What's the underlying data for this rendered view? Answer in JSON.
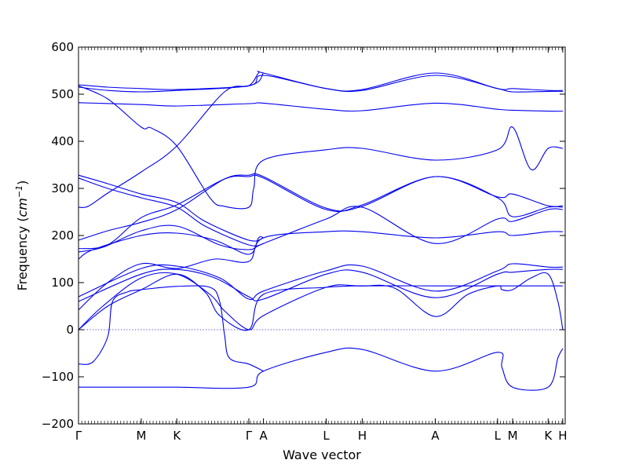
{
  "chart_data": {
    "type": "line",
    "title": "",
    "xlabel": "Wave vector",
    "ylabel": "Frequency (cm⁻¹)",
    "ylabel_base": "Frequency (",
    "ylabel_unit": "cm",
    "ylabel_exp": "−1",
    "ylabel_close": ")",
    "ylim": [
      -200,
      600
    ],
    "yticks": [
      -200,
      -100,
      0,
      100,
      200,
      300,
      400,
      500,
      600
    ],
    "ytick_labels": [
      "−200",
      "−100",
      "0",
      "100",
      "200",
      "300",
      "400",
      "500",
      "600"
    ],
    "xlim": [
      0,
      1
    ],
    "xticks": [
      {
        "label": "Γ",
        "x": 0.0
      },
      {
        "label": "M",
        "x": 0.129
      },
      {
        "label": "K",
        "x": 0.202
      },
      {
        "label": "Γ",
        "x": 0.35
      },
      {
        "label": "A",
        "x": 0.38
      },
      {
        "label": "L",
        "x": 0.509
      },
      {
        "label": "H",
        "x": 0.583
      },
      {
        "label": "A",
        "x": 0.733
      },
      {
        "label": "L",
        "x": 0.861
      },
      {
        "label": "M",
        "x": 0.892
      },
      {
        "label": "K",
        "x": 0.965
      },
      {
        "label": "H",
        "x": 0.995
      }
    ],
    "grid": false,
    "zero_line": "dotted",
    "line_color": "#0000ee",
    "series": [
      {
        "points": [
          [
            0,
            -122
          ],
          [
            0.129,
            -122
          ],
          [
            0.202,
            -122
          ],
          [
            0.35,
            -122
          ],
          [
            0.38,
            -88
          ],
          [
            0.509,
            -48
          ],
          [
            0.583,
            -42
          ],
          [
            0.733,
            -88
          ],
          [
            0.861,
            -48
          ],
          [
            0.87,
            -80
          ],
          [
            0.892,
            -122
          ],
          [
            0.965,
            -122
          ],
          [
            0.985,
            -60
          ],
          [
            0.995,
            -40
          ]
        ]
      },
      {
        "points": [
          [
            0,
            -73
          ],
          [
            0.03,
            -68
          ],
          [
            0.06,
            -15
          ],
          [
            0.07,
            60
          ],
          [
            0.1,
            80
          ],
          [
            0.129,
            85
          ],
          [
            0.202,
            92
          ],
          [
            0.27,
            90
          ],
          [
            0.29,
            60
          ],
          [
            0.3,
            -10
          ],
          [
            0.31,
            -60
          ],
          [
            0.35,
            -73
          ],
          [
            0.38,
            -88
          ]
        ]
      },
      {
        "points": [
          [
            0,
            0
          ],
          [
            0.05,
            50
          ],
          [
            0.129,
            110
          ],
          [
            0.202,
            118
          ],
          [
            0.27,
            75
          ],
          [
            0.3,
            40
          ],
          [
            0.35,
            0
          ],
          [
            0.38,
            30
          ],
          [
            0.509,
            90
          ],
          [
            0.583,
            93
          ],
          [
            0.733,
            93
          ],
          [
            0.861,
            93
          ],
          [
            0.965,
            93
          ],
          [
            0.995,
            93
          ]
        ]
      },
      {
        "points": [
          [
            0,
            0
          ],
          [
            0.06,
            50
          ],
          [
            0.129,
            85
          ],
          [
            0.202,
            118
          ],
          [
            0.26,
            80
          ],
          [
            0.29,
            30
          ],
          [
            0.35,
            0
          ],
          [
            0.38,
            75
          ],
          [
            0.509,
            90
          ],
          [
            0.583,
            93
          ],
          [
            0.65,
            88
          ],
          [
            0.733,
            28
          ],
          [
            0.8,
            75
          ],
          [
            0.861,
            93
          ],
          [
            0.87,
            85
          ],
          [
            0.892,
            85
          ],
          [
            0.93,
            110
          ],
          [
            0.965,
            118
          ],
          [
            0.985,
            60
          ],
          [
            0.995,
            0
          ]
        ]
      },
      {
        "points": [
          [
            0,
            60
          ],
          [
            0.129,
            118
          ],
          [
            0.202,
            128
          ],
          [
            0.28,
            110
          ],
          [
            0.35,
            70
          ],
          [
            0.38,
            65
          ],
          [
            0.509,
            118
          ],
          [
            0.583,
            122
          ],
          [
            0.733,
            68
          ],
          [
            0.861,
            118
          ],
          [
            0.892,
            122
          ],
          [
            0.965,
            128
          ],
          [
            0.995,
            128
          ]
        ]
      },
      {
        "points": [
          [
            0,
            70
          ],
          [
            0.129,
            130
          ],
          [
            0.202,
            135
          ],
          [
            0.29,
            110
          ],
          [
            0.35,
            65
          ],
          [
            0.38,
            82
          ],
          [
            0.509,
            125
          ],
          [
            0.583,
            135
          ],
          [
            0.733,
            82
          ],
          [
            0.861,
            125
          ],
          [
            0.892,
            140
          ],
          [
            0.965,
            133
          ],
          [
            0.995,
            133
          ]
        ]
      },
      {
        "points": [
          [
            0,
            42
          ],
          [
            0.06,
            100
          ],
          [
            0.129,
            140
          ],
          [
            0.202,
            130
          ],
          [
            0.28,
            150
          ],
          [
            0.35,
            145
          ],
          [
            0.38,
            195
          ],
          [
            0.509,
            208
          ],
          [
            0.583,
            208
          ],
          [
            0.733,
            195
          ],
          [
            0.861,
            208
          ],
          [
            0.892,
            200
          ],
          [
            0.965,
            208
          ],
          [
            0.995,
            208
          ]
        ]
      },
      {
        "points": [
          [
            0,
            150
          ],
          [
            0.03,
            170
          ],
          [
            0.129,
            200
          ],
          [
            0.202,
            205
          ],
          [
            0.28,
            190
          ],
          [
            0.35,
            160
          ],
          [
            0.37,
            195
          ],
          [
            0.38,
            195
          ]
        ]
      },
      {
        "points": [
          [
            0,
            165
          ],
          [
            0.05,
            175
          ],
          [
            0.129,
            210
          ],
          [
            0.202,
            220
          ],
          [
            0.29,
            180
          ],
          [
            0.35,
            170
          ],
          [
            0.38,
            183
          ],
          [
            0.509,
            235
          ],
          [
            0.583,
            260
          ],
          [
            0.733,
            183
          ],
          [
            0.861,
            235
          ],
          [
            0.892,
            230
          ],
          [
            0.965,
            255
          ],
          [
            0.995,
            255
          ]
        ]
      },
      {
        "points": [
          [
            0,
            172
          ],
          [
            0.06,
            180
          ],
          [
            0.129,
            238
          ],
          [
            0.202,
            265
          ],
          [
            0.3,
            320
          ],
          [
            0.35,
            325
          ],
          [
            0.38,
            322
          ],
          [
            0.509,
            255
          ],
          [
            0.583,
            265
          ],
          [
            0.733,
            325
          ],
          [
            0.861,
            280
          ],
          [
            0.892,
            240
          ],
          [
            0.965,
            260
          ],
          [
            0.995,
            260
          ]
        ]
      },
      {
        "points": [
          [
            0,
            190
          ],
          [
            0.06,
            210
          ],
          [
            0.129,
            228
          ],
          [
            0.202,
            255
          ],
          [
            0.3,
            320
          ],
          [
            0.35,
            328
          ],
          [
            0.38,
            325
          ],
          [
            0.509,
            258
          ],
          [
            0.583,
            262
          ],
          [
            0.733,
            325
          ],
          [
            0.861,
            282
          ],
          [
            0.892,
            288
          ],
          [
            0.965,
            263
          ],
          [
            0.995,
            263
          ]
        ]
      },
      {
        "points": [
          [
            0,
            322
          ],
          [
            0.06,
            300
          ],
          [
            0.129,
            280
          ],
          [
            0.202,
            260
          ],
          [
            0.26,
            220
          ],
          [
            0.35,
            180
          ],
          [
            0.38,
            183
          ]
        ]
      },
      {
        "points": [
          [
            0,
            328
          ],
          [
            0.06,
            310
          ],
          [
            0.129,
            288
          ],
          [
            0.202,
            270
          ],
          [
            0.26,
            230
          ],
          [
            0.35,
            190
          ],
          [
            0.38,
            195
          ]
        ]
      },
      {
        "points": [
          [
            0,
            260
          ],
          [
            0.02,
            262
          ],
          [
            0.06,
            290
          ],
          [
            0.129,
            335
          ],
          [
            0.202,
            390
          ],
          [
            0.3,
            505
          ],
          [
            0.35,
            518
          ],
          [
            0.37,
            545
          ],
          [
            0.38,
            545
          ],
          [
            0.509,
            512
          ],
          [
            0.583,
            510
          ],
          [
            0.733,
            545
          ],
          [
            0.861,
            512
          ],
          [
            0.892,
            512
          ],
          [
            0.965,
            508
          ],
          [
            0.995,
            508
          ]
        ]
      },
      {
        "points": [
          [
            0,
            518
          ],
          [
            0.06,
            490
          ],
          [
            0.129,
            430
          ],
          [
            0.15,
            428
          ],
          [
            0.202,
            390
          ],
          [
            0.27,
            280
          ],
          [
            0.3,
            262
          ],
          [
            0.35,
            260
          ],
          [
            0.36,
            300
          ],
          [
            0.38,
            360
          ],
          [
            0.509,
            382
          ],
          [
            0.583,
            385
          ],
          [
            0.733,
            360
          ],
          [
            0.861,
            382
          ],
          [
            0.892,
            430
          ],
          [
            0.93,
            340
          ],
          [
            0.965,
            385
          ],
          [
            0.995,
            385
          ]
        ]
      },
      {
        "points": [
          [
            0,
            482
          ],
          [
            0.129,
            478
          ],
          [
            0.202,
            475
          ],
          [
            0.35,
            480
          ],
          [
            0.38,
            481
          ],
          [
            0.509,
            468
          ],
          [
            0.583,
            465
          ],
          [
            0.733,
            481
          ],
          [
            0.861,
            468
          ],
          [
            0.892,
            466
          ],
          [
            0.965,
            464
          ],
          [
            0.995,
            464
          ]
        ]
      },
      {
        "points": [
          [
            0,
            515
          ],
          [
            0.06,
            508
          ],
          [
            0.129,
            505
          ],
          [
            0.202,
            508
          ],
          [
            0.35,
            518
          ],
          [
            0.38,
            545
          ]
        ]
      },
      {
        "points": [
          [
            0,
            520
          ],
          [
            0.06,
            515
          ],
          [
            0.129,
            512
          ],
          [
            0.202,
            510
          ],
          [
            0.35,
            518
          ],
          [
            0.38,
            540
          ],
          [
            0.509,
            512
          ],
          [
            0.583,
            508
          ],
          [
            0.733,
            540
          ],
          [
            0.861,
            512
          ],
          [
            0.892,
            505
          ],
          [
            0.965,
            506
          ],
          [
            0.995,
            506
          ]
        ]
      }
    ]
  }
}
